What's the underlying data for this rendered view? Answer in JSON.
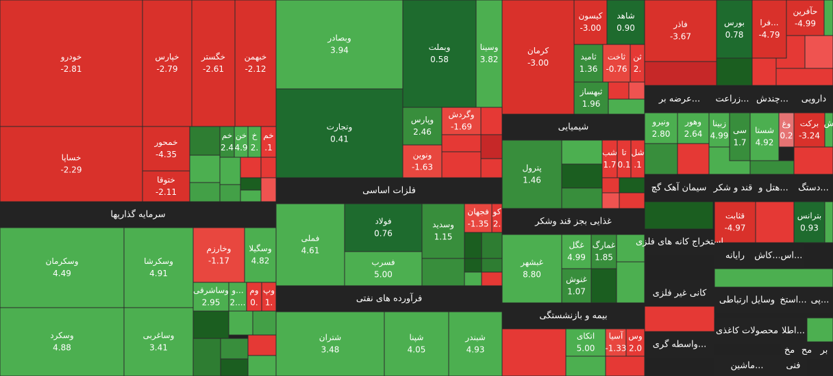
{
  "chart_data": {
    "type": "treemap",
    "color_scale": [
      {
        "min": 2.5,
        "color": "#4caf50"
      },
      {
        "min": 1,
        "color": "#388e3c"
      },
      {
        "min": 0,
        "color": "#1e6b2e"
      },
      {
        "min": -2,
        "color": "#e8473f"
      },
      {
        "min": null,
        "color": "#d9312b"
      }
    ],
    "groups": [
      {
        "items": [
          {
            "name": "خودرو",
            "value": -2.81
          },
          {
            "name": "خساپا",
            "value": -2.29
          },
          {
            "name": "خپارس",
            "value": -2.79
          },
          {
            "name": "خگستر",
            "value": -2.61
          },
          {
            "name": "خبهمن",
            "value": -2.12
          },
          {
            "name": "خمحور",
            "value": -4.35
          },
          {
            "name": "ختوقا",
            "value": -2.11
          },
          {
            "name": "خم",
            "value": 2.4
          },
          {
            "name": "خن",
            "value": 4.9
          },
          {
            "name": "خ",
            "text": "2.",
            "color": "#4caf50"
          },
          {
            "name": "خم",
            "text": ".1",
            "color": "#e53935"
          }
        ]
      },
      {
        "name": "سرمایه گذاریها",
        "items": [
          {
            "name": "وسکرمان",
            "value": 4.49
          },
          {
            "name": "وسکرد",
            "value": 4.88
          },
          {
            "name": "وسکرشا",
            "value": 4.91
          },
          {
            "name": "وساغربی",
            "value": 3.41
          },
          {
            "name": "وخارزم",
            "value": -1.17
          },
          {
            "name": "وسگیلا",
            "value": 4.82
          },
          {
            "name": "وساشرقی",
            "value": 2.95
          },
          {
            "name": "و...",
            "text": "2....",
            "color": "#4caf50"
          },
          {
            "name": "وم",
            "text": "0.",
            "color": "#e53935"
          },
          {
            "name": "وپ",
            "text": "1.",
            "color": "#e53935"
          }
        ]
      },
      {
        "items": [
          {
            "name": "وبصادر",
            "value": 3.94
          },
          {
            "name": "وبملت",
            "value": 0.58
          },
          {
            "name": "وسینا",
            "value": 3.82
          },
          {
            "name": "وتجارت",
            "value": 0.41
          },
          {
            "name": "وپارس",
            "value": 2.46
          },
          {
            "name": "وگردش",
            "value": -1.69
          },
          {
            "name": "ونوین",
            "value": -1.63
          }
        ]
      },
      {
        "name": "فلزات اساسی",
        "items": [
          {
            "name": "فملی",
            "value": 4.61
          },
          {
            "name": "فولاد",
            "value": 0.76
          },
          {
            "name": "فسرب",
            "value": 5,
            "value_label": "5.00"
          },
          {
            "name": "وسدید",
            "value": 1.15
          },
          {
            "name": "فجهان",
            "value": -1.35
          },
          {
            "name": "کو",
            "text": "2.",
            "color": "#e53935"
          }
        ]
      },
      {
        "name": "فرآورده های نفتی",
        "items": [
          {
            "name": "شتران",
            "value": 3.48
          },
          {
            "name": "شپنا",
            "value": 4.05
          },
          {
            "name": "شبندر",
            "value": 4.93
          }
        ]
      },
      {
        "items": [
          {
            "name": "کرمان",
            "value": -3,
            "value_label": "-3.00"
          },
          {
            "name": "کیسون",
            "value": -3,
            "value_label": "-3.00"
          },
          {
            "name": "شاهد",
            "value": 0.9,
            "value_label": "0.90"
          },
          {
            "name": "ثامید",
            "value": 1.36
          },
          {
            "name": "ثاخت",
            "value": -0.76
          },
          {
            "name": "ثن",
            "text": "2.",
            "color": "#e53935"
          },
          {
            "name": "ثبهساز",
            "value": 1.96
          }
        ]
      },
      {
        "name": "شیمیایی",
        "items": [
          {
            "name": "پترول",
            "value": 1.46
          },
          {
            "name": "شب",
            "text": "1.7",
            "color": "#e53935"
          },
          {
            "name": "تا",
            "text": "0.1",
            "color": "#e53935"
          },
          {
            "name": "شل",
            "text": ".1",
            "color": "#e53935"
          }
        ]
      },
      {
        "name": "غذایی بجز قند وشکر",
        "items": [
          {
            "name": "غبشهر",
            "value": 8.8,
            "value_label": "8.80"
          },
          {
            "name": "غگل",
            "value": 4.99
          },
          {
            "name": "غمارگ",
            "value": 1.85
          },
          {
            "name": "غنوش",
            "value": 1.07
          }
        ]
      },
      {
        "name": "بیمه و بازنشستگی",
        "items": [
          {
            "name": "اتکای",
            "value": 5,
            "value_label": "5.00"
          },
          {
            "name": "آسیا",
            "value": -1.33
          },
          {
            "name": "وس",
            "text": "2.0",
            "color": "#e53935"
          }
        ]
      },
      {
        "items": [
          {
            "name": "فاذر",
            "value": -3.67
          },
          {
            "name": "بورس",
            "value": 0.78
          },
          {
            "name": "فرا...",
            "value": -4.79
          },
          {
            "name": "حآفرین",
            "value": -4.99
          }
        ]
      },
      {
        "name": "عرضه بر...",
        "items": [
          {
            "name": "ونیرو",
            "value": 2.8,
            "value_label": "2.80"
          },
          {
            "name": "وهور",
            "value": 2.64
          }
        ]
      },
      {
        "name": "زراعت...",
        "items": [
          {
            "name": "زبینا",
            "value": 4.99
          },
          {
            "name": "سی",
            "value": 1.7
          }
        ]
      },
      {
        "name": "چندش...",
        "items": [
          {
            "name": "شستا",
            "value": 4.92
          },
          {
            "name": "وغ",
            "text": "0.2",
            "color": "#e57373"
          }
        ]
      },
      {
        "name": "دارویی",
        "items": [
          {
            "name": "برکت",
            "value": -3.24
          },
          {
            "name": "ش",
            "text": "",
            "color": "#4caf50"
          }
        ]
      },
      {
        "name": "سیمان آهک گچ",
        "items": []
      },
      {
        "name": "قند و شکر",
        "items": [
          {
            "name": "قثابت",
            "value": -4.97
          }
        ]
      },
      {
        "name": "هتل و...",
        "items": []
      },
      {
        "name": "دستگ...",
        "items": [
          {
            "name": "بترانس",
            "value": 0.93
          }
        ]
      },
      {
        "name": "استخراج کانه های فلزی",
        "items": []
      },
      {
        "name": "رایانه",
        "items": []
      },
      {
        "name": "کاش...",
        "items": []
      },
      {
        "name": "اس...",
        "items": []
      },
      {
        "name": "کانی غیر فلزی",
        "items": []
      },
      {
        "name": "وسایل ارتباطی",
        "items": []
      },
      {
        "name": "استخ...",
        "items": []
      },
      {
        "name": "پی...",
        "items": []
      },
      {
        "name": "واسطه گری...",
        "items": []
      },
      {
        "name": "محصولات کاغذی",
        "items": []
      },
      {
        "name": "اطلا...",
        "items": []
      },
      {
        "name": "ماشین...",
        "items": []
      },
      {
        "name": "فنی",
        "items": []
      },
      {
        "name": "مخ",
        "items": []
      },
      {
        "name": "مح",
        "items": []
      },
      {
        "name": "بر",
        "items": []
      }
    ]
  }
}
